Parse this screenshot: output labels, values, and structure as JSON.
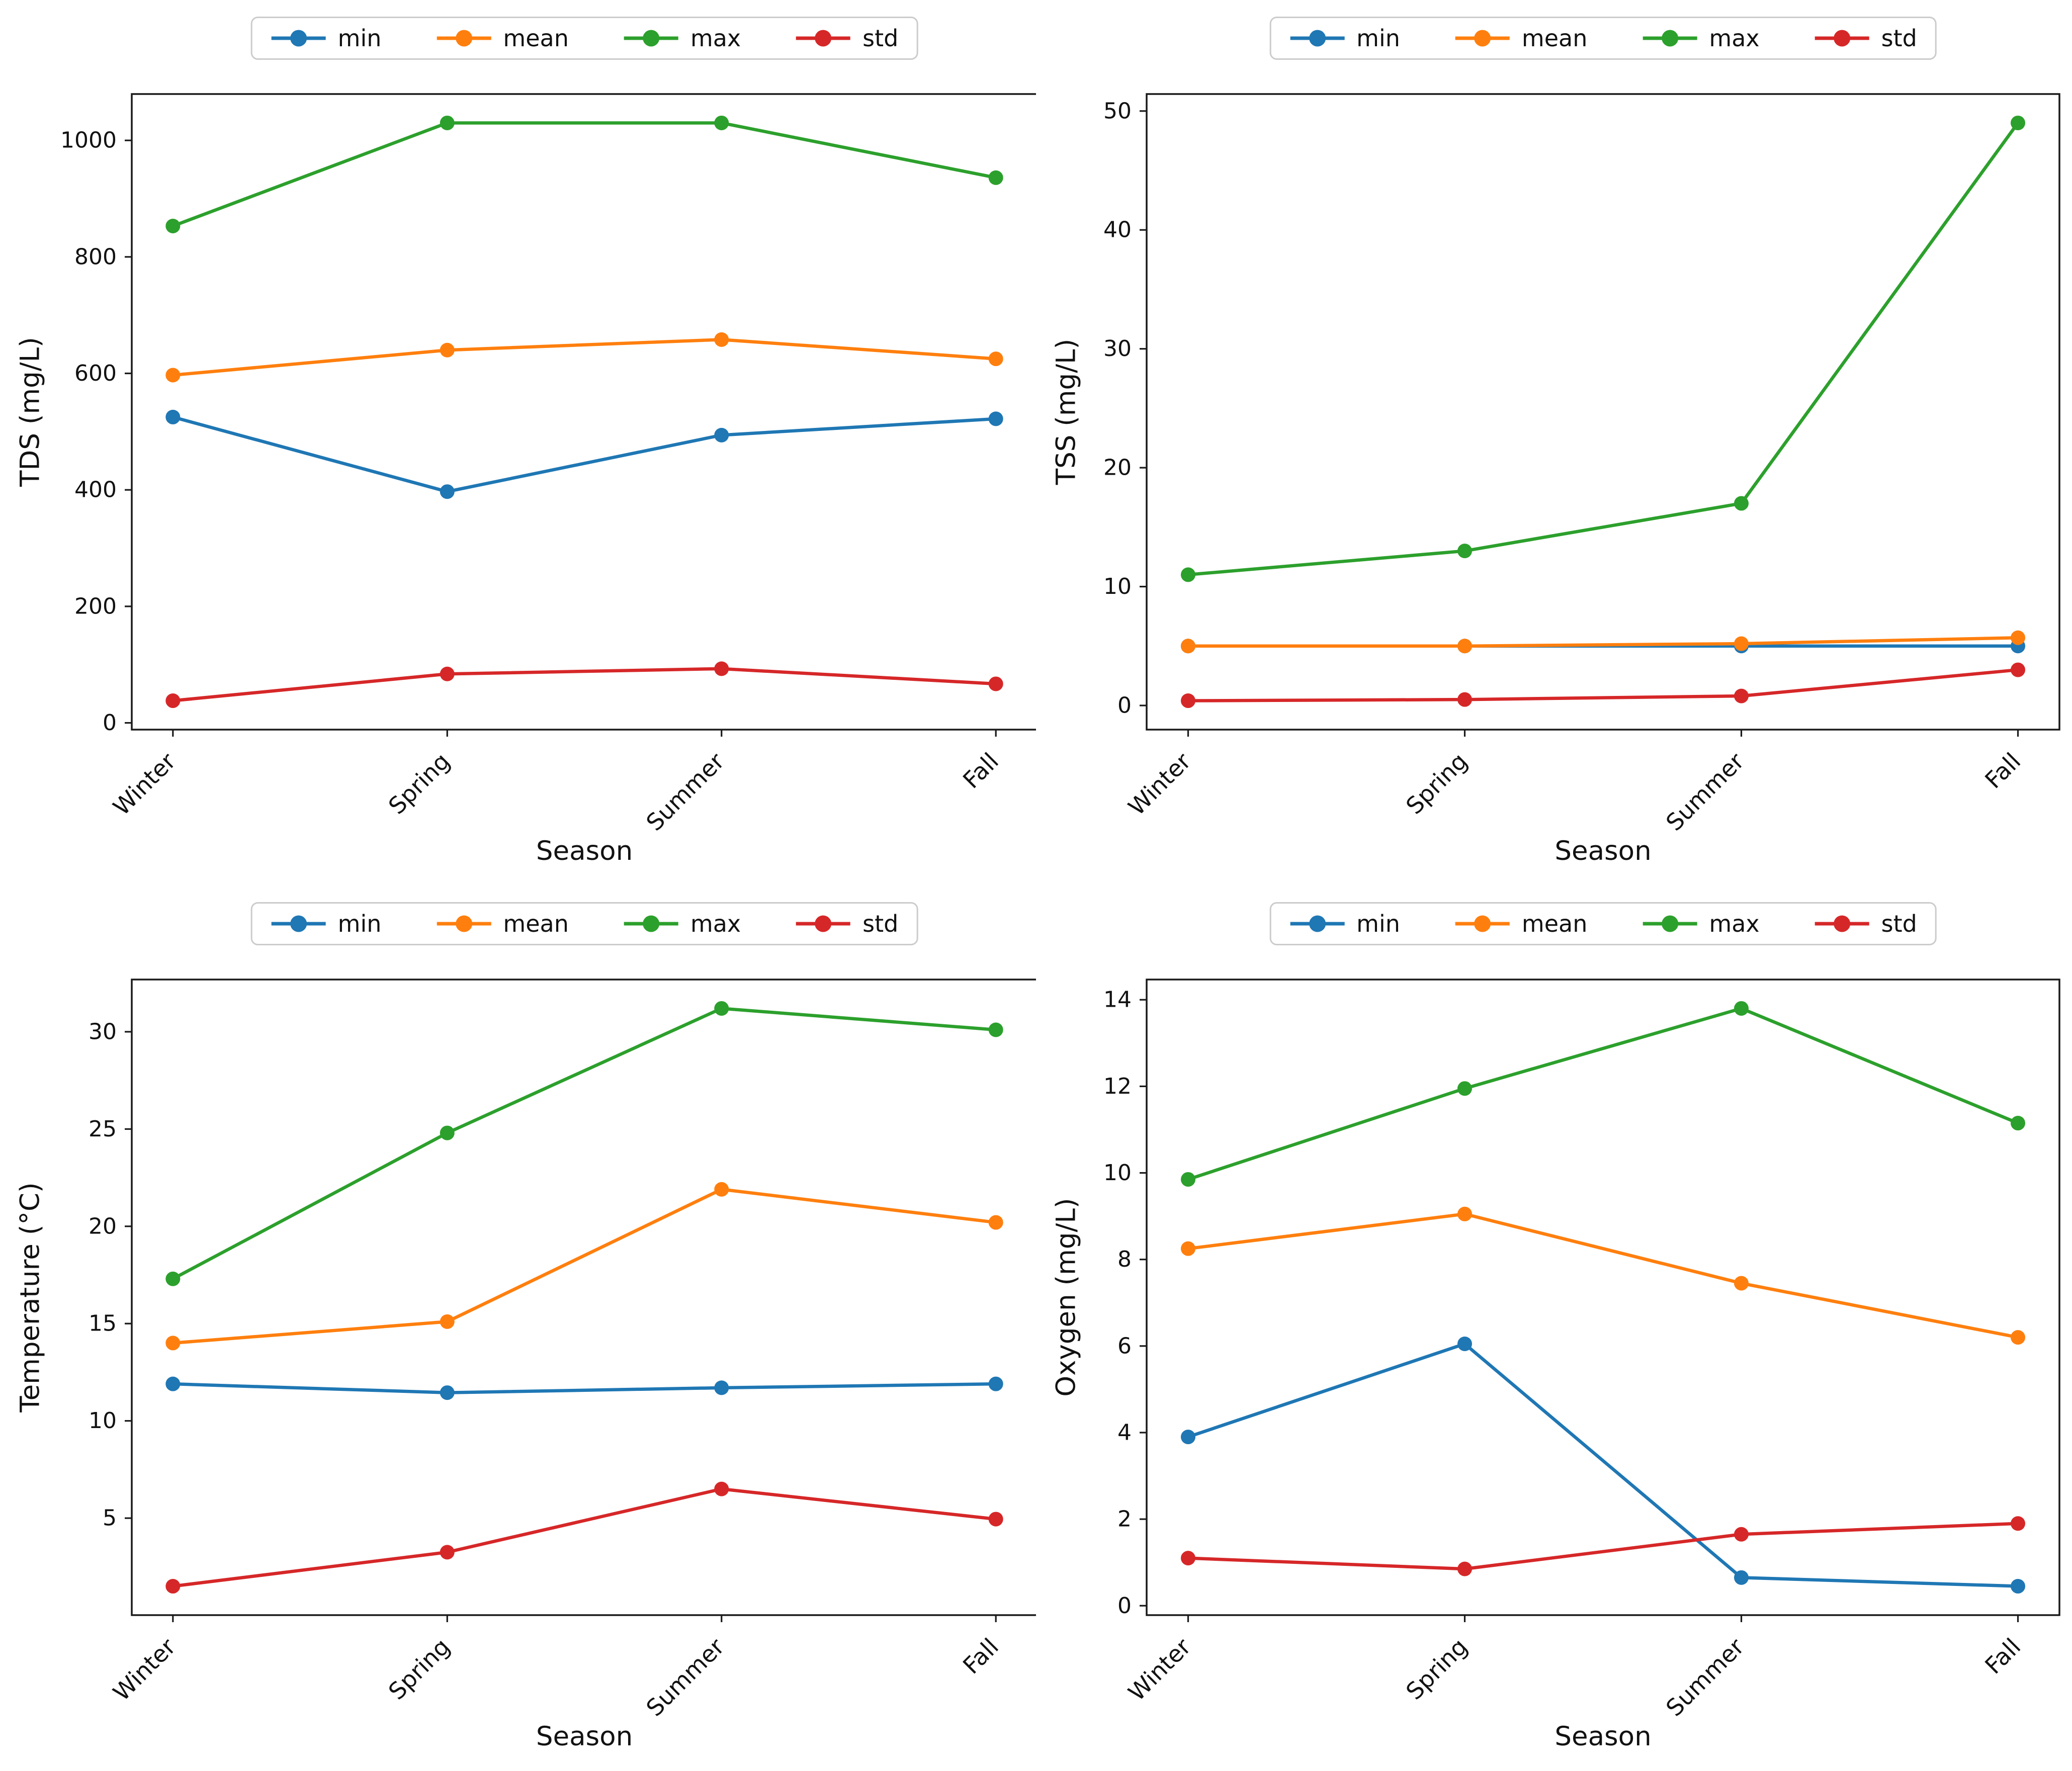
{
  "figure": {
    "background": "#ffffff",
    "text_color": "#111111",
    "spine_color": "#1a1a1a",
    "legend_border_color": "#cccccc",
    "legend_labels": [
      "min",
      "mean",
      "max",
      "std"
    ],
    "series_colors": {
      "min": "#1f77b4",
      "mean": "#ff7f0e",
      "max": "#2ca02c",
      "std": "#d62728"
    }
  },
  "chart_data": [
    {
      "type": "line",
      "id": "tds",
      "position": "top-left",
      "title": "",
      "xlabel": "Season",
      "ylabel": "TDS (mg/L)",
      "categories": [
        "Winter",
        "Spring",
        "Summer",
        "Fall"
      ],
      "series": [
        {
          "name": "min",
          "color": "#1f77b4",
          "values": [
            525,
            397,
            494,
            522
          ]
        },
        {
          "name": "mean",
          "color": "#ff7f0e",
          "values": [
            597,
            640,
            658,
            625
          ]
        },
        {
          "name": "max",
          "color": "#2ca02c",
          "values": [
            853,
            1030,
            1030,
            936
          ]
        },
        {
          "name": "std",
          "color": "#d62728",
          "values": [
            38,
            84,
            93,
            67
          ]
        }
      ],
      "yticks": [
        0,
        200,
        400,
        600,
        800,
        1000
      ],
      "ylim": [
        -11.6,
        1079.6
      ],
      "grid": false,
      "legend_position": "top-center"
    },
    {
      "type": "line",
      "id": "tss",
      "position": "top-right",
      "title": "",
      "xlabel": "Season",
      "ylabel": "TSS (mg/L)",
      "categories": [
        "Winter",
        "Spring",
        "Summer",
        "Fall"
      ],
      "series": [
        {
          "name": "min",
          "color": "#1f77b4",
          "values": [
            5.0,
            5.0,
            5.0,
            5.0
          ]
        },
        {
          "name": "mean",
          "color": "#ff7f0e",
          "values": [
            5.0,
            5.0,
            5.2,
            5.7
          ]
        },
        {
          "name": "max",
          "color": "#2ca02c",
          "values": [
            11,
            13,
            17,
            49
          ]
        },
        {
          "name": "std",
          "color": "#d62728",
          "values": [
            0.4,
            0.5,
            0.8,
            3.0
          ]
        }
      ],
      "yticks": [
        0,
        10,
        20,
        30,
        40,
        50
      ],
      "ylim": [
        -2.03,
        51.43
      ],
      "grid": false,
      "legend_position": "top-center"
    },
    {
      "type": "line",
      "id": "temperature",
      "position": "bottom-left",
      "title": "",
      "xlabel": "Season",
      "ylabel": "Temperature (°C)",
      "categories": [
        "Winter",
        "Spring",
        "Summer",
        "Fall"
      ],
      "series": [
        {
          "name": "min",
          "color": "#1f77b4",
          "values": [
            11.9,
            11.45,
            11.7,
            11.9
          ]
        },
        {
          "name": "mean",
          "color": "#ff7f0e",
          "values": [
            14.0,
            15.1,
            21.9,
            20.2
          ]
        },
        {
          "name": "max",
          "color": "#2ca02c",
          "values": [
            17.3,
            24.8,
            31.2,
            30.1
          ]
        },
        {
          "name": "std",
          "color": "#d62728",
          "values": [
            1.5,
            3.25,
            6.5,
            4.95
          ]
        }
      ],
      "yticks": [
        5,
        10,
        15,
        20,
        25,
        30
      ],
      "ylim": [
        0.015,
        32.685
      ],
      "grid": false,
      "legend_position": "top-center"
    },
    {
      "type": "line",
      "id": "oxygen",
      "position": "bottom-right",
      "title": "",
      "xlabel": "Season",
      "ylabel": "Oxygen (mg/L)",
      "categories": [
        "Winter",
        "Spring",
        "Summer",
        "Fall"
      ],
      "series": [
        {
          "name": "min",
          "color": "#1f77b4",
          "values": [
            3.9,
            6.05,
            0.65,
            0.45
          ]
        },
        {
          "name": "mean",
          "color": "#ff7f0e",
          "values": [
            8.25,
            9.05,
            7.45,
            6.2
          ]
        },
        {
          "name": "max",
          "color": "#2ca02c",
          "values": [
            9.85,
            11.95,
            13.8,
            11.15
          ]
        },
        {
          "name": "std",
          "color": "#d62728",
          "values": [
            1.1,
            0.85,
            1.65,
            1.9
          ]
        }
      ],
      "yticks": [
        0,
        2,
        4,
        6,
        8,
        10,
        12,
        14
      ],
      "ylim": [
        -0.2175,
        14.4675
      ],
      "grid": false,
      "legend_position": "top-center"
    }
  ]
}
